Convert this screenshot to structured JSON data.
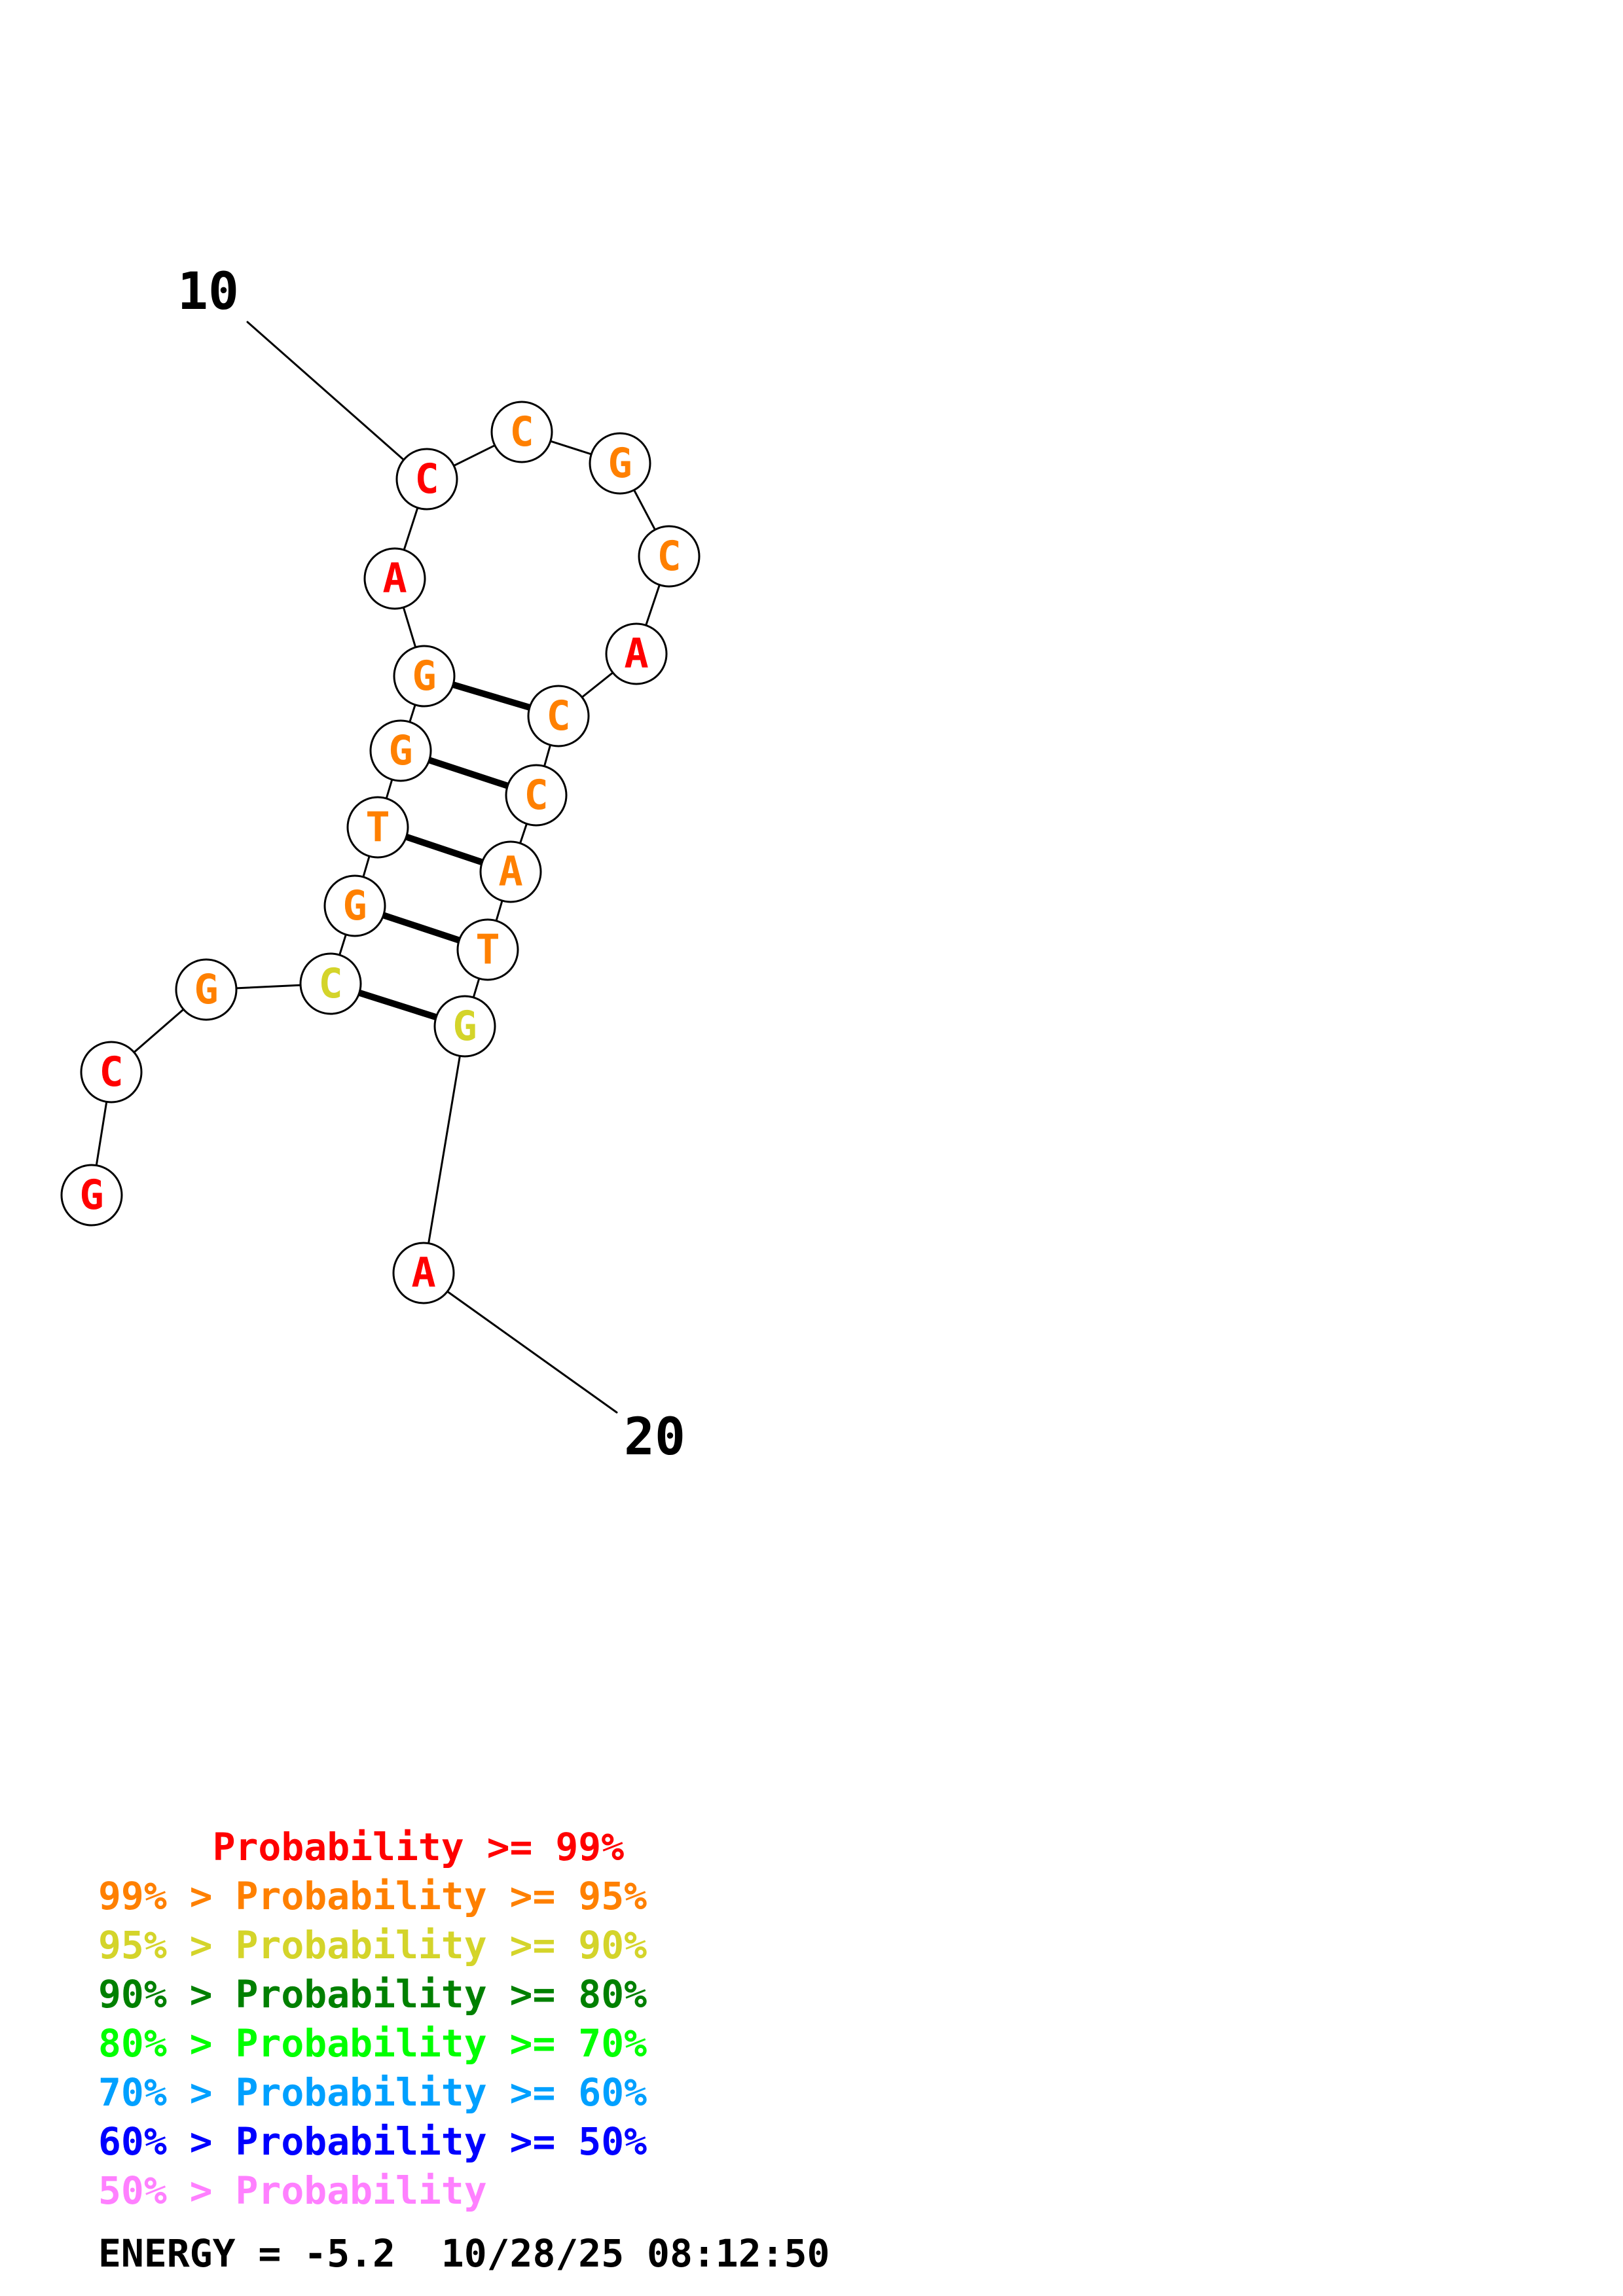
{
  "structure": {
    "end_labels": [
      "10",
      "20"
    ],
    "nucleotides": [
      {
        "letter": "G",
        "prob_class": "red"
      },
      {
        "letter": "C",
        "prob_class": "red"
      },
      {
        "letter": "G",
        "prob_class": "orange"
      },
      {
        "letter": "C",
        "prob_class": "yellow"
      },
      {
        "letter": "G",
        "prob_class": "orange"
      },
      {
        "letter": "T",
        "prob_class": "orange"
      },
      {
        "letter": "G",
        "prob_class": "orange"
      },
      {
        "letter": "G",
        "prob_class": "orange"
      },
      {
        "letter": "A",
        "prob_class": "red"
      },
      {
        "letter": "C",
        "prob_class": "red"
      },
      {
        "letter": "C",
        "prob_class": "orange"
      },
      {
        "letter": "G",
        "prob_class": "orange"
      },
      {
        "letter": "C",
        "prob_class": "orange"
      },
      {
        "letter": "A",
        "prob_class": "red"
      },
      {
        "letter": "C",
        "prob_class": "orange"
      },
      {
        "letter": "C",
        "prob_class": "orange"
      },
      {
        "letter": "A",
        "prob_class": "orange"
      },
      {
        "letter": "T",
        "prob_class": "orange"
      },
      {
        "letter": "G",
        "prob_class": "yellow"
      },
      {
        "letter": "A",
        "prob_class": "red"
      }
    ],
    "base_pairs": [
      [
        3,
        18
      ],
      [
        4,
        17
      ],
      [
        5,
        16
      ],
      [
        6,
        15
      ],
      [
        7,
        14
      ]
    ]
  },
  "colors": {
    "red": "#ff0000",
    "orange": "#ff8000",
    "yellow": "#d4d42a",
    "dark_green": "#008000",
    "green": "#00ff00",
    "light_blue": "#00a0ff",
    "blue": "#0000ff",
    "pink": "#ff80ff"
  },
  "legend": [
    {
      "text": "     Probability >= 99%",
      "color_key": "red"
    },
    {
      "text": "99% > Probability >= 95%",
      "color_key": "orange"
    },
    {
      "text": "95% > Probability >= 90%",
      "color_key": "yellow"
    },
    {
      "text": "90% > Probability >= 80%",
      "color_key": "dark_green"
    },
    {
      "text": "80% > Probability >= 70%",
      "color_key": "green"
    },
    {
      "text": "70% > Probability >= 60%",
      "color_key": "light_blue"
    },
    {
      "text": "60% > Probability >= 50%",
      "color_key": "blue"
    },
    {
      "text": "50% > Probability",
      "color_key": "pink"
    }
  ],
  "footer": {
    "energy": "ENERGY = -5.2  10/28/25 08:12:50"
  }
}
